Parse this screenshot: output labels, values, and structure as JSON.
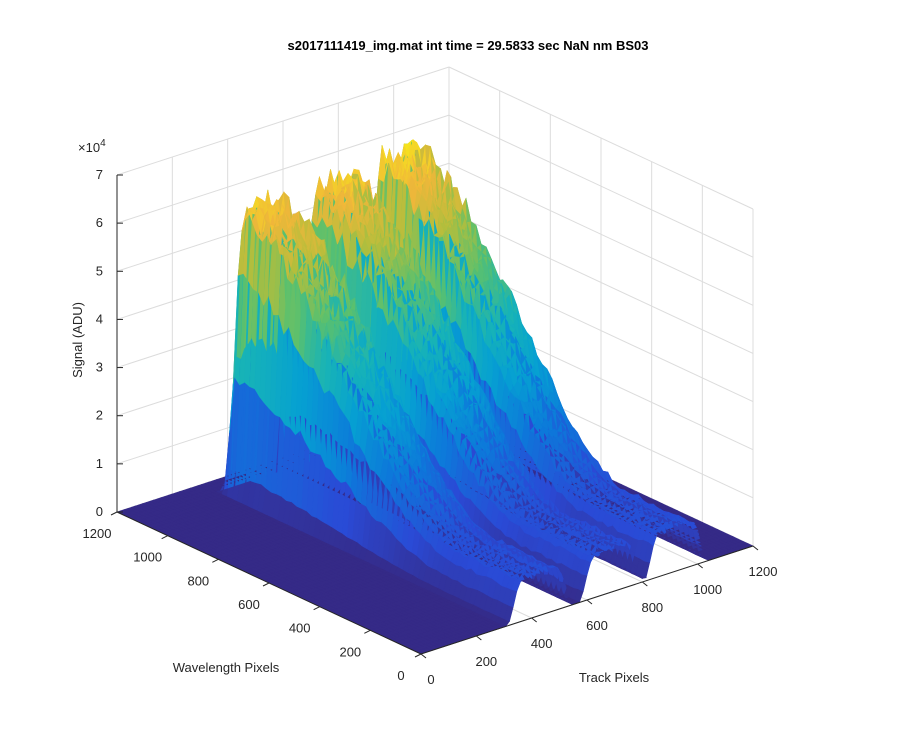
{
  "chart_data": {
    "type": "surface",
    "title": "s2017111419_img.mat int time = 29.5833 sec  NaN nm BS03",
    "xlabel": "Track Pixels",
    "ylabel": "Wavelength Pixels",
    "zlabel": "Signal (ADU)",
    "z_exponent_label": "×10",
    "z_exponent_power": "4",
    "xlim": [
      0,
      1200
    ],
    "ylim": [
      0,
      1200
    ],
    "zlim": [
      0,
      70000
    ],
    "xticks": [
      "0",
      "200",
      "400",
      "600",
      "800",
      "1000",
      "1200"
    ],
    "yticks": [
      "0",
      "200",
      "400",
      "600",
      "800",
      "1000",
      "1200"
    ],
    "zticks": [
      "0",
      "1",
      "2",
      "3",
      "4",
      "5",
      "6",
      "7"
    ],
    "grid": true,
    "colormap": "parula",
    "colors": {
      "floor": "#352a87",
      "dark_blue": "#2a4ad6",
      "blue": "#0d8ad8",
      "teal": "#17b3b7",
      "green": "#7dc25e",
      "orange": "#f0b73a",
      "yellow": "#f9fb0e"
    },
    "peaks": [
      {
        "track_center": 430,
        "track_halfwidth": 120,
        "wavelength_start": 250,
        "wavelength_end": 1100,
        "max_signal": 61000
      },
      {
        "track_center": 690,
        "track_halfwidth": 120,
        "wavelength_start": 250,
        "wavelength_end": 1100,
        "max_signal": 61000
      },
      {
        "track_center": 920,
        "track_halfwidth": 115,
        "wavelength_start": 250,
        "wavelength_end": 1100,
        "max_signal": 63000
      }
    ]
  }
}
